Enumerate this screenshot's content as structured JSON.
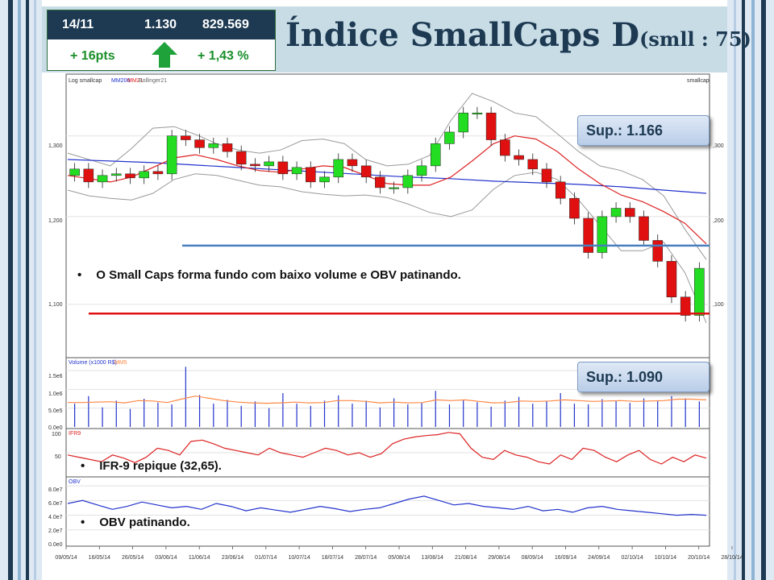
{
  "header": {
    "date": "14/11",
    "index_value": "1.130",
    "volume": "829.569",
    "change_points": "+ 16pts",
    "change_percent": "+ 1,43 %",
    "trend_icon": "up-arrow-icon",
    "title_main": "Índice SmallCaps D",
    "title_sub": "(smll : 75)"
  },
  "annotations": {
    "sup_1": "Sup.: 1.166",
    "sup_2": "Sup.: 1.090",
    "note_price": "O  Small  Caps  forma  fundo  com  baixo  volume  e  OBV  patinando.",
    "note_ifr": "IFR-9 repique (32,65).",
    "note_obv": "OBV patinando.",
    "bullet": "•"
  },
  "colors": {
    "header_dark": "#1d3a52",
    "up_green": "#1a8f2a",
    "candle_up": "#22dd22",
    "candle_down": "#e01010",
    "mm200": "#2233cc",
    "mm21": "#dd2222",
    "bollinger": "#999999",
    "support_blue": "#4a7fbf",
    "support_red": "#e01010",
    "volume_bar": "#2233cc",
    "volume_mm": "#ff8844",
    "ifr_line": "#dd2222",
    "obv_line": "#2233cc"
  },
  "chart_data": [
    {
      "type": "candlestick",
      "legend": [
        "Log smallcap",
        "MM200",
        "MM21",
        "Bollinger21"
      ],
      "symbol": "smallcap",
      "yticks_left": [
        "1,300",
        "1,200",
        "1,100"
      ],
      "yticks_right": [
        ",300",
        ",200",
        ",100"
      ],
      "ylim": [
        1045,
        1380
      ],
      "yscale": "log",
      "support_levels": [
        1166,
        1090
      ],
      "x": [
        "09/05/14",
        "16/05/14",
        "26/05/14",
        "03/06/14",
        "11/06/14",
        "23/06/14",
        "01/07/14",
        "10/07/14",
        "18/07/14",
        "28/07/14",
        "05/08/14",
        "13/08/14",
        "21/08/14",
        "29/08/14",
        "08/09/14",
        "16/09/14",
        "24/09/14",
        "02/10/14",
        "10/10/14",
        "20/10/14",
        "28/10/14"
      ],
      "closes": [
        1258,
        1242,
        1250,
        1252,
        1247,
        1255,
        1252,
        1300,
        1295,
        1285,
        1290,
        1280,
        1264,
        1262,
        1267,
        1252,
        1260,
        1242,
        1248,
        1270,
        1262,
        1248,
        1235,
        1235,
        1250,
        1262,
        1290,
        1305,
        1330,
        1330,
        1295,
        1275,
        1270,
        1258,
        1242,
        1222,
        1198,
        1158,
        1200,
        1210,
        1200,
        1172,
        1148,
        1108,
        1088,
        1140
      ],
      "opens": [
        1250,
        1258,
        1242,
        1250,
        1252,
        1247,
        1255,
        1252,
        1300,
        1295,
        1285,
        1290,
        1280,
        1264,
        1262,
        1267,
        1252,
        1260,
        1242,
        1248,
        1270,
        1262,
        1248,
        1235,
        1235,
        1250,
        1262,
        1290,
        1305,
        1330,
        1330,
        1295,
        1275,
        1270,
        1258,
        1242,
        1222,
        1198,
        1158,
        1200,
        1210,
        1200,
        1172,
        1148,
        1108,
        1088
      ],
      "mm200": [
        1270,
        1268,
        1266,
        1263,
        1260,
        1257,
        1254,
        1251,
        1248,
        1246,
        1243,
        1241,
        1239,
        1236,
        1232,
        1228
      ],
      "mm21": [
        1250,
        1246,
        1242,
        1248,
        1260,
        1272,
        1276,
        1270,
        1262,
        1256,
        1254,
        1258,
        1262,
        1260,
        1250,
        1240,
        1238,
        1238,
        1248,
        1268,
        1290,
        1300,
        1296,
        1280,
        1258,
        1240,
        1226,
        1218,
        1206,
        1192,
        1168
      ],
      "boll_upper": [
        1278,
        1270,
        1262,
        1284,
        1310,
        1312,
        1302,
        1290,
        1282,
        1278,
        1282,
        1294,
        1296,
        1290,
        1270,
        1262,
        1264,
        1275,
        1320,
        1356,
        1345,
        1330,
        1325,
        1303,
        1280,
        1262,
        1256,
        1245,
        1225,
        1185,
        1150
      ],
      "boll_lower": [
        1232,
        1225,
        1222,
        1220,
        1228,
        1245,
        1252,
        1250,
        1244,
        1238,
        1236,
        1230,
        1227,
        1225,
        1226,
        1223,
        1215,
        1205,
        1200,
        1208,
        1233,
        1250,
        1254,
        1245,
        1220,
        1190,
        1160,
        1160,
        1170,
        1135,
        1080
      ]
    },
    {
      "type": "bar",
      "label": "Volume (x1000 R$)",
      "ma_label": "MM5",
      "yticks": [
        "1.5e6",
        "1.0e6",
        "5.0e5",
        "0.0e0"
      ],
      "ylim": [
        0,
        1800000
      ],
      "values": [
        620000,
        820000,
        520000,
        700000,
        480000,
        750000,
        650000,
        600000,
        1600000,
        850000,
        620000,
        720000,
        560000,
        680000,
        500000,
        900000,
        620000,
        560000,
        700000,
        840000,
        620000,
        700000,
        520000,
        760000,
        600000,
        640000,
        960000,
        600000,
        720000,
        660000,
        540000,
        700000,
        800000,
        620000,
        680000,
        900000,
        620000,
        600000,
        740000,
        700000,
        640000,
        760000,
        700000,
        820000,
        760000,
        680000
      ],
      "ma": [
        650000,
        650000,
        660000,
        670000,
        640000,
        700000,
        690000,
        650000,
        740000,
        820000,
        760000,
        700000,
        660000,
        640000,
        630000,
        640000,
        660000,
        640000,
        650000,
        700000,
        700000,
        680000,
        640000,
        660000,
        640000,
        650000,
        720000,
        700000,
        720000,
        680000,
        640000,
        650000,
        690000,
        680000,
        690000,
        720000,
        700000,
        680000,
        690000,
        700000,
        680000,
        690000,
        700000,
        740000,
        740000,
        720000
      ]
    },
    {
      "type": "line",
      "label": "IFR9",
      "yticks": [
        "100",
        "50"
      ],
      "ylim": [
        0,
        100
      ],
      "values": [
        45,
        40,
        35,
        30,
        45,
        38,
        28,
        40,
        60,
        55,
        45,
        75,
        78,
        70,
        60,
        55,
        50,
        45,
        60,
        50,
        45,
        40,
        50,
        60,
        55,
        45,
        50,
        40,
        48,
        70,
        80,
        85,
        88,
        90,
        95,
        92,
        60,
        40,
        35,
        55,
        45,
        40,
        30,
        25,
        45,
        35,
        60,
        55,
        40,
        30,
        45,
        55,
        35,
        25,
        40,
        30,
        45,
        38
      ]
    },
    {
      "type": "line",
      "label": "OBV",
      "yticks": [
        "8.0e7",
        "6.0e7",
        "4.0e7",
        "2.0e7",
        "0.0e0"
      ],
      "ylim": [
        0,
        90000000
      ],
      "values": [
        56000000,
        60000000,
        54000000,
        48000000,
        52000000,
        58000000,
        54000000,
        50000000,
        52000000,
        48000000,
        56000000,
        52000000,
        46000000,
        50000000,
        47000000,
        44000000,
        48000000,
        52000000,
        49000000,
        45000000,
        48000000,
        50000000,
        56000000,
        62000000,
        66000000,
        60000000,
        54000000,
        56000000,
        52000000,
        50000000,
        48000000,
        52000000,
        46000000,
        48000000,
        44000000,
        50000000,
        52000000,
        48000000,
        46000000,
        44000000,
        42000000,
        40000000,
        41000000,
        40000000
      ]
    }
  ]
}
